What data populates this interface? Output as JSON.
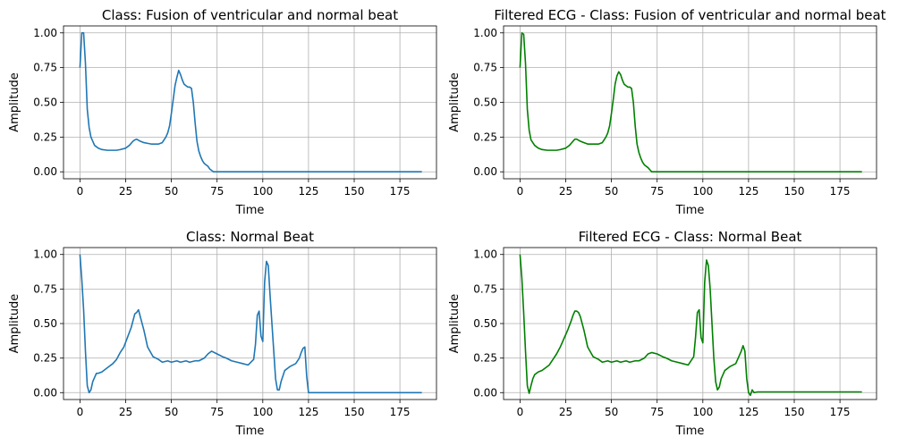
{
  "chart_data": [
    {
      "type": "line",
      "title": "Class: Fusion of ventricular and normal beat",
      "xlabel": "Time",
      "ylabel": "Amplitude",
      "xlim": [
        -9,
        195
      ],
      "ylim": [
        -0.05,
        1.05
      ],
      "xticks": [
        "0",
        "25",
        "50",
        "75",
        "100",
        "125",
        "150",
        "175"
      ],
      "yticks": [
        "0.00",
        "0.25",
        "0.50",
        "0.75",
        "1.00"
      ],
      "grid": true,
      "color": "#1f77b4",
      "series": [
        {
          "x": [
            0,
            1,
            2,
            3,
            4,
            5,
            6,
            8,
            10,
            12,
            15,
            18,
            20,
            22,
            25,
            27,
            29,
            30,
            31,
            33,
            35,
            37,
            39,
            41,
            43,
            45,
            47,
            48,
            49,
            50,
            51,
            52,
            53,
            54,
            55,
            56,
            57,
            58,
            59,
            60,
            61,
            62,
            63,
            64,
            65,
            66,
            67,
            68,
            69,
            70,
            71,
            72,
            73,
            74,
            80,
            90,
            100,
            110,
            120,
            130,
            140,
            150,
            160,
            170,
            180,
            187
          ],
          "y": [
            0.75,
            1.0,
            1.0,
            0.78,
            0.45,
            0.32,
            0.25,
            0.19,
            0.17,
            0.16,
            0.155,
            0.155,
            0.155,
            0.16,
            0.17,
            0.19,
            0.22,
            0.23,
            0.235,
            0.22,
            0.21,
            0.205,
            0.2,
            0.2,
            0.2,
            0.21,
            0.25,
            0.28,
            0.33,
            0.42,
            0.52,
            0.62,
            0.68,
            0.73,
            0.7,
            0.66,
            0.63,
            0.62,
            0.61,
            0.61,
            0.6,
            0.5,
            0.35,
            0.22,
            0.15,
            0.11,
            0.08,
            0.06,
            0.05,
            0.04,
            0.02,
            0.01,
            0.0,
            0.0,
            0.0,
            0.0,
            0.0,
            0.0,
            0.0,
            0.0,
            0.0,
            0.0,
            0.0,
            0.0,
            0.0,
            0.0
          ]
        }
      ]
    },
    {
      "type": "line",
      "title": "Filtered ECG - Class: Fusion of ventricular and normal beat",
      "xlabel": "Time",
      "ylabel": "Amplitude",
      "xlim": [
        -9,
        195
      ],
      "ylim": [
        -0.05,
        1.05
      ],
      "xticks": [
        "0",
        "25",
        "50",
        "75",
        "100",
        "125",
        "150",
        "175"
      ],
      "yticks": [
        "0.00",
        "0.25",
        "0.50",
        "0.75",
        "1.00"
      ],
      "grid": true,
      "color": "#008000",
      "series": [
        {
          "x": [
            0,
            1,
            2,
            3,
            4,
            5,
            6,
            8,
            10,
            12,
            15,
            18,
            20,
            22,
            25,
            27,
            29,
            30,
            31,
            33,
            35,
            37,
            39,
            41,
            43,
            45,
            47,
            48,
            49,
            50,
            51,
            52,
            53,
            54,
            55,
            56,
            57,
            58,
            59,
            60,
            61,
            62,
            63,
            64,
            65,
            66,
            67,
            68,
            69,
            70,
            71,
            72,
            73,
            74,
            80,
            90,
            100,
            110,
            120,
            130,
            140,
            150,
            160,
            170,
            180,
            187
          ],
          "y": [
            0.75,
            1.0,
            0.99,
            0.78,
            0.45,
            0.3,
            0.23,
            0.19,
            0.17,
            0.16,
            0.155,
            0.155,
            0.155,
            0.16,
            0.17,
            0.19,
            0.22,
            0.235,
            0.235,
            0.22,
            0.21,
            0.2,
            0.2,
            0.2,
            0.2,
            0.21,
            0.25,
            0.28,
            0.33,
            0.42,
            0.52,
            0.63,
            0.69,
            0.72,
            0.7,
            0.66,
            0.63,
            0.62,
            0.61,
            0.61,
            0.6,
            0.5,
            0.33,
            0.2,
            0.14,
            0.1,
            0.07,
            0.05,
            0.04,
            0.03,
            0.015,
            0.0,
            0.0,
            0.0,
            0.0,
            0.0,
            0.0,
            0.0,
            0.0,
            0.0,
            0.0,
            0.0,
            0.0,
            0.0,
            0.0,
            0.0
          ]
        }
      ]
    },
    {
      "type": "line",
      "title": "Class: Normal Beat",
      "xlabel": "Time",
      "ylabel": "Amplitude",
      "xlim": [
        -9,
        195
      ],
      "ylim": [
        -0.05,
        1.05
      ],
      "xticks": [
        "0",
        "25",
        "50",
        "75",
        "100",
        "125",
        "150",
        "175"
      ],
      "yticks": [
        "0.00",
        "0.25",
        "0.50",
        "0.75",
        "1.00"
      ],
      "grid": true,
      "color": "#1f77b4",
      "series": [
        {
          "x": [
            0,
            1,
            2,
            3,
            4,
            5,
            6,
            7,
            8,
            9,
            10,
            12,
            14,
            16,
            18,
            20,
            22,
            24,
            26,
            28,
            29,
            30,
            31,
            32,
            33,
            35,
            37,
            40,
            43,
            45,
            48,
            50,
            53,
            55,
            58,
            60,
            63,
            65,
            68,
            70,
            72,
            75,
            78,
            80,
            83,
            86,
            89,
            92,
            95,
            96,
            97,
            98,
            99,
            100,
            101,
            102,
            103,
            104,
            105,
            106,
            107,
            108,
            109,
            110,
            112,
            115,
            118,
            120,
            121,
            122,
            123,
            124,
            125,
            127,
            130,
            140,
            150,
            160,
            170,
            180,
            187
          ],
          "y": [
            1.0,
            0.82,
            0.6,
            0.3,
            0.05,
            0.0,
            0.02,
            0.08,
            0.11,
            0.14,
            0.14,
            0.15,
            0.17,
            0.19,
            0.21,
            0.24,
            0.29,
            0.33,
            0.4,
            0.47,
            0.52,
            0.57,
            0.58,
            0.6,
            0.55,
            0.45,
            0.33,
            0.26,
            0.24,
            0.22,
            0.23,
            0.22,
            0.23,
            0.22,
            0.23,
            0.22,
            0.23,
            0.23,
            0.25,
            0.28,
            0.3,
            0.28,
            0.26,
            0.25,
            0.23,
            0.22,
            0.21,
            0.2,
            0.24,
            0.35,
            0.56,
            0.59,
            0.41,
            0.37,
            0.8,
            0.95,
            0.92,
            0.7,
            0.5,
            0.3,
            0.1,
            0.02,
            0.02,
            0.08,
            0.16,
            0.19,
            0.21,
            0.25,
            0.29,
            0.32,
            0.33,
            0.12,
            0.0,
            0.0,
            0.0,
            0.0,
            0.0,
            0.0,
            0.0,
            0.0,
            0.0
          ]
        }
      ]
    },
    {
      "type": "line",
      "title": "Filtered ECG - Class: Normal Beat",
      "xlabel": "Time",
      "ylabel": "Amplitude",
      "xlim": [
        -9,
        195
      ],
      "ylim": [
        -0.05,
        1.05
      ],
      "xticks": [
        "0",
        "25",
        "50",
        "75",
        "100",
        "125",
        "150",
        "175"
      ],
      "yticks": [
        "0.00",
        "0.25",
        "0.50",
        "0.75",
        "1.00"
      ],
      "grid": true,
      "color": "#008000",
      "series": [
        {
          "x": [
            0,
            1,
            2,
            3,
            4,
            5,
            6,
            7,
            8,
            9,
            10,
            12,
            14,
            16,
            18,
            20,
            22,
            24,
            26,
            28,
            29,
            30,
            31,
            32,
            33,
            35,
            37,
            40,
            43,
            45,
            48,
            50,
            53,
            55,
            58,
            60,
            63,
            65,
            68,
            70,
            72,
            75,
            78,
            80,
            83,
            86,
            89,
            92,
            95,
            96,
            97,
            98,
            99,
            100,
            101,
            102,
            103,
            104,
            105,
            106,
            107,
            108,
            109,
            110,
            112,
            115,
            118,
            120,
            121,
            122,
            123,
            124,
            125,
            126,
            127,
            128,
            130,
            140,
            150,
            160,
            170,
            180,
            187
          ],
          "y": [
            1.0,
            0.83,
            0.58,
            0.3,
            0.05,
            -0.005,
            0.05,
            0.1,
            0.13,
            0.14,
            0.15,
            0.16,
            0.18,
            0.2,
            0.24,
            0.28,
            0.33,
            0.39,
            0.45,
            0.52,
            0.56,
            0.59,
            0.59,
            0.58,
            0.55,
            0.45,
            0.33,
            0.26,
            0.24,
            0.22,
            0.23,
            0.22,
            0.23,
            0.22,
            0.23,
            0.22,
            0.23,
            0.23,
            0.25,
            0.28,
            0.29,
            0.28,
            0.26,
            0.25,
            0.23,
            0.22,
            0.21,
            0.2,
            0.26,
            0.4,
            0.58,
            0.6,
            0.4,
            0.36,
            0.8,
            0.96,
            0.92,
            0.75,
            0.5,
            0.25,
            0.08,
            0.02,
            0.04,
            0.1,
            0.16,
            0.19,
            0.21,
            0.27,
            0.3,
            0.34,
            0.3,
            0.1,
            0.0,
            -0.02,
            0.02,
            0.0,
            0.005,
            0.005,
            0.005,
            0.005,
            0.005,
            0.005,
            0.005
          ]
        }
      ]
    }
  ]
}
